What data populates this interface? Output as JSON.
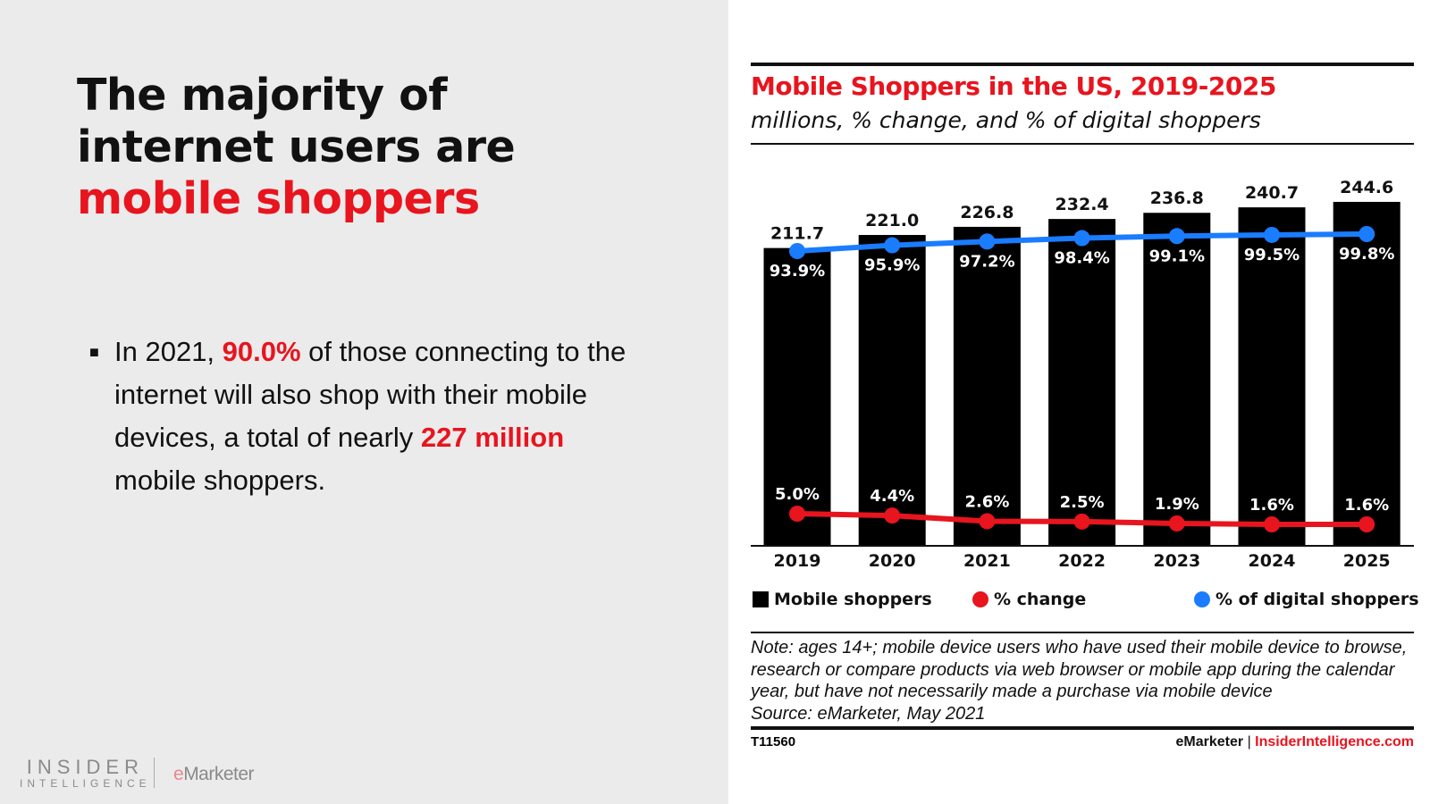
{
  "slide": {
    "headline_part1": "The majority of internet users are ",
    "headline_highlight": "mobile shoppers",
    "bullet": {
      "t1": "In 2021, ",
      "h1": "90.0%",
      "t2": " of those connecting to the internet will also shop with their mobile devices, a total of nearly ",
      "h2": "227 million",
      "t3": " mobile shoppers."
    },
    "logo_insider_line1": "INSIDER",
    "logo_insider_line2": "INTELLIGENCE",
    "logo_emarketer": "eMarketer"
  },
  "chart_data": {
    "type": "bar",
    "title": "Mobile Shoppers in the US, 2019-2025",
    "subtitle": "millions, % change, and % of digital shoppers",
    "categories": [
      "2019",
      "2020",
      "2021",
      "2022",
      "2023",
      "2024",
      "2025"
    ],
    "series": [
      {
        "name": "Mobile shoppers",
        "type": "bar",
        "color": "#000000",
        "values": [
          211.7,
          221.0,
          226.8,
          232.4,
          236.8,
          240.7,
          244.6
        ],
        "labels": [
          "211.7",
          "221.0",
          "226.8",
          "232.4",
          "236.8",
          "240.7",
          "244.6"
        ]
      },
      {
        "name": "% change",
        "type": "line",
        "color": "#e8141e",
        "values": [
          5.0,
          4.4,
          2.6,
          2.5,
          1.9,
          1.6,
          1.6
        ],
        "labels": [
          "5.0%",
          "4.4%",
          "2.6%",
          "2.5%",
          "1.9%",
          "1.6%",
          "1.6%"
        ]
      },
      {
        "name": "% of digital shoppers",
        "type": "line",
        "color": "#1a7cff",
        "values": [
          93.9,
          95.9,
          97.2,
          98.4,
          99.1,
          99.5,
          99.8
        ],
        "labels": [
          "93.9%",
          "95.9%",
          "97.2%",
          "98.4%",
          "99.1%",
          "99.5%",
          "99.8%"
        ]
      }
    ],
    "legend": [
      "Mobile shoppers",
      "% change",
      "% of digital shoppers"
    ],
    "legend_placement": "bottom",
    "grid": false,
    "note": "Note: ages 14+; mobile device users who have used their mobile device to browse, research or compare products via web browser or mobile app during the calendar year, but have not necessarily made a purchase via mobile device",
    "source": "Source: eMarketer, May 2021",
    "chart_id": "T11560",
    "credit_1": "eMarketer",
    "credit_sep": " | ",
    "credit_2": "InsiderIntelligence.com"
  }
}
